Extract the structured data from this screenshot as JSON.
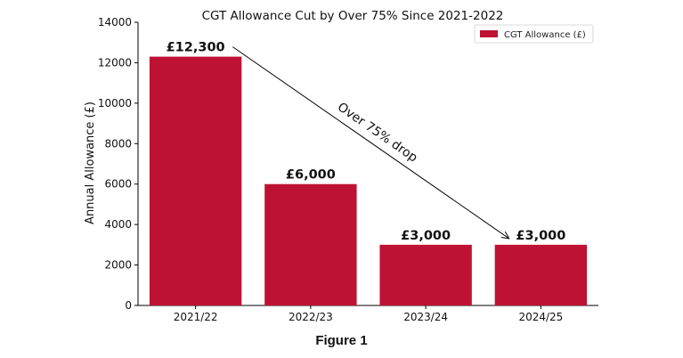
{
  "chart_data": {
    "type": "bar",
    "title": "CGT Allowance Cut by Over 75% Since 2021-2022",
    "xlabel": "",
    "ylabel": "Annual Allowance (£)",
    "categories": [
      "2021/22",
      "2022/23",
      "2023/24",
      "2024/25"
    ],
    "series": [
      {
        "name": "CGT Allowance (£)",
        "values": [
          12300,
          6000,
          3000,
          3000
        ]
      }
    ],
    "data_labels": [
      "£12,300",
      "£6,000",
      "£3,000",
      "£3,000"
    ],
    "ylim": [
      0,
      14000
    ],
    "yticks": [
      0,
      2000,
      4000,
      6000,
      8000,
      10000,
      12000,
      14000
    ],
    "grid": false,
    "legend_position": "top-right",
    "bar_color": "#be1234",
    "annotation": {
      "text": "Over 75% drop",
      "from": {
        "x": "2021/22",
        "y": 12300
      },
      "to": {
        "x": "2024/25",
        "y": 3000
      }
    }
  },
  "figure_caption": "Figure 1"
}
